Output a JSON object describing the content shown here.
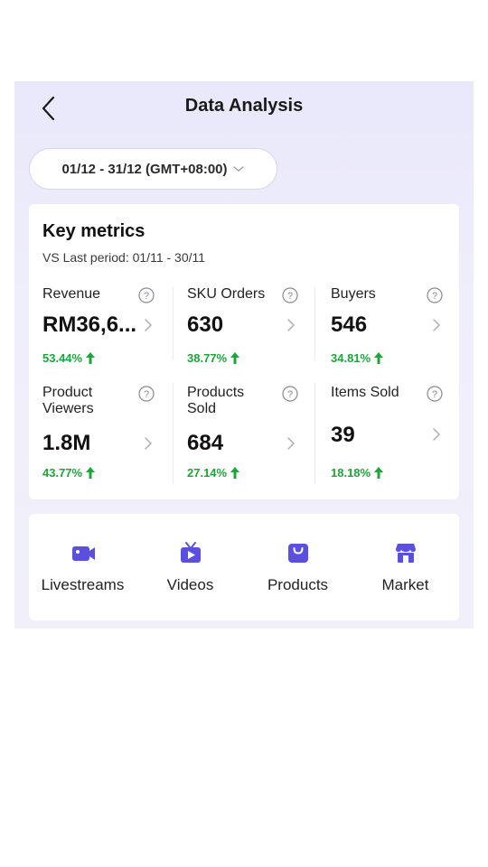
{
  "header": {
    "title": "Data Analysis"
  },
  "date_range": {
    "label": "01/12 - 31/12 (GMT+08:00)"
  },
  "key_metrics": {
    "title": "Key metrics",
    "comparison": "VS Last period: 01/11 - 30/11",
    "items": [
      {
        "label": "Revenue",
        "value": "RM36,6...",
        "change": "53.44%"
      },
      {
        "label": "SKU Orders",
        "value": "630",
        "change": "38.77%"
      },
      {
        "label": "Buyers",
        "value": "546",
        "change": "34.81%"
      },
      {
        "label": "Product\nViewers",
        "value": "1.8M",
        "change": "43.77%"
      },
      {
        "label": "Products\nSold",
        "value": "684",
        "change": "27.14%"
      },
      {
        "label": "Items Sold",
        "value": "39",
        "change": "18.18%"
      }
    ],
    "change_direction": "up",
    "positive_color": "#1da43a"
  },
  "nav": {
    "accent_color": "#5b4fe0",
    "items": [
      {
        "label": "Livestreams",
        "icon": "video-camera-icon"
      },
      {
        "label": "Videos",
        "icon": "tv-play-icon"
      },
      {
        "label": "Products",
        "icon": "shopping-bag-icon"
      },
      {
        "label": "Market",
        "icon": "storefront-icon"
      }
    ]
  }
}
